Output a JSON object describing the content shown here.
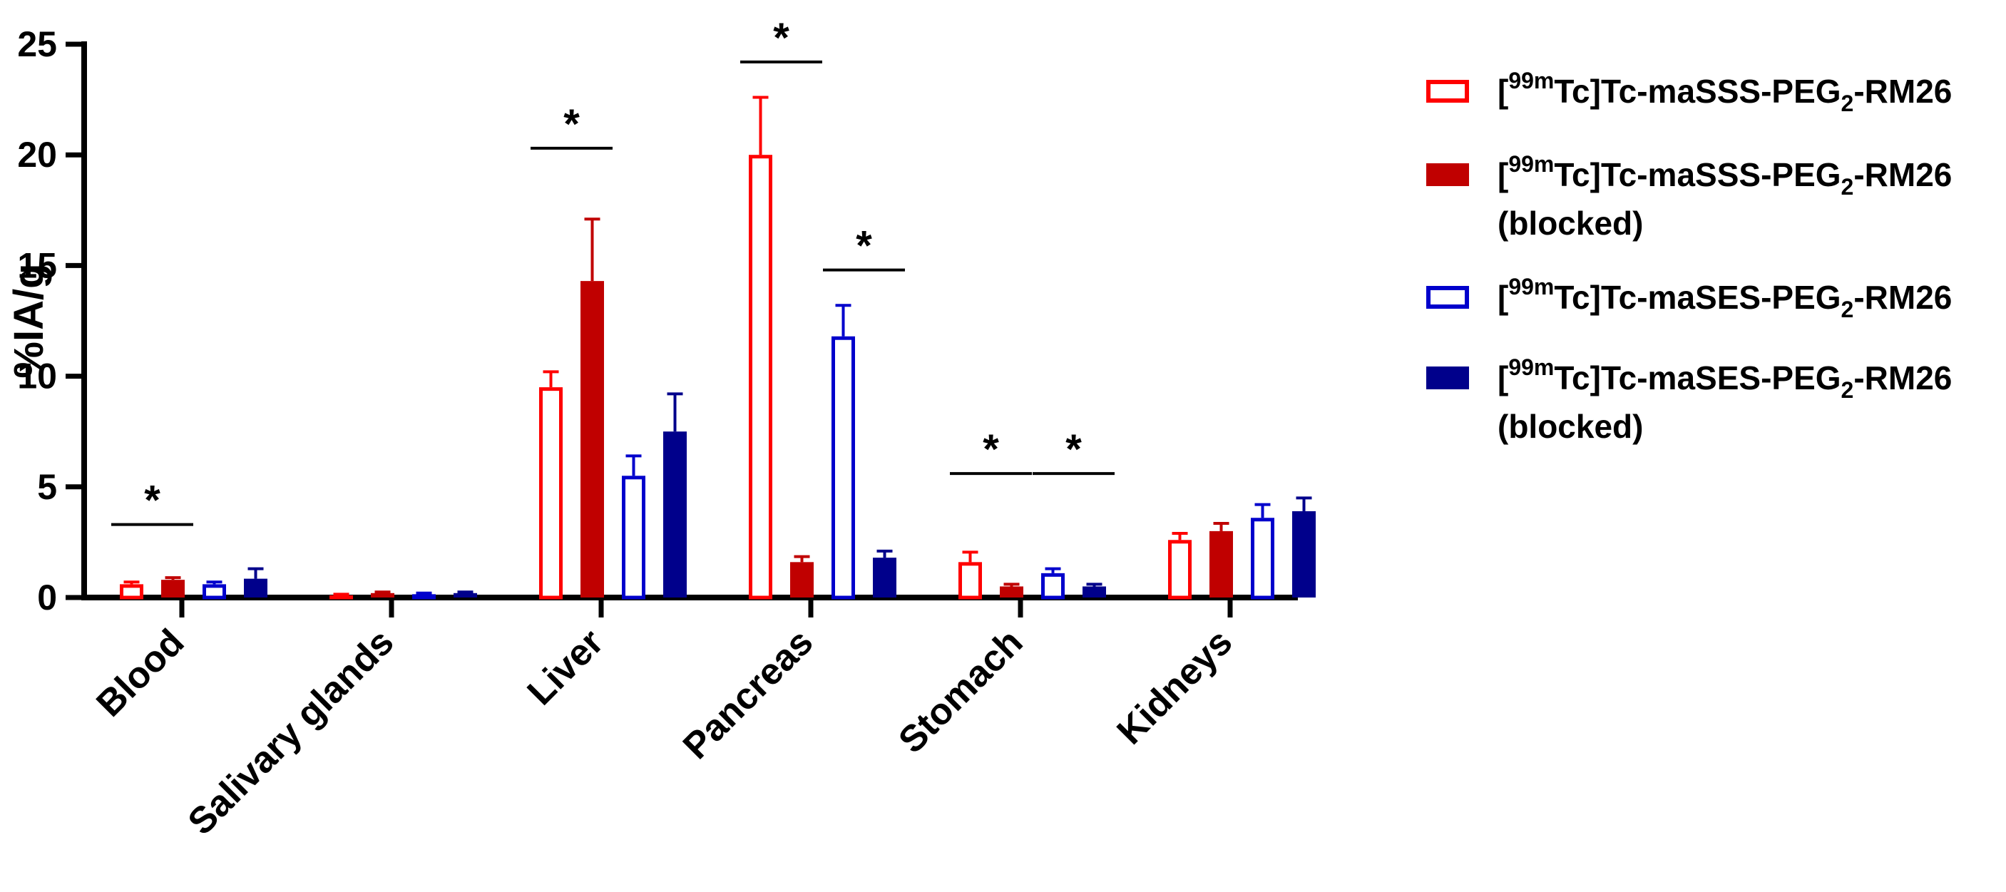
{
  "chart_data": {
    "type": "bar",
    "title": "",
    "xlabel": "",
    "ylabel": "%IA/g",
    "ylim": [
      0,
      25
    ],
    "yticks": [
      0,
      5,
      10,
      15,
      20,
      25
    ],
    "grid": false,
    "legend_position": "right",
    "categories": [
      "Blood",
      "Salivary glands",
      "Liver",
      "Pancreas",
      "Stomach",
      "Kidneys"
    ],
    "series": [
      {
        "name": "[99mTc]Tc-maSSS-PEG2-RM26",
        "legend": {
          "pre": "[",
          "sup": "99m",
          "mid": "Tc]Tc-maSSS-PEG",
          "sub": "2",
          "post": "-RM26",
          "line2": ""
        },
        "color": "#ff0000",
        "style": "open",
        "values": [
          0.6,
          0.1,
          9.5,
          20.0,
          1.6,
          2.6
        ],
        "errors": [
          0.1,
          0.05,
          0.7,
          2.6,
          0.45,
          0.3
        ]
      },
      {
        "name": "[99mTc]Tc-maSSS-PEG2-RM26 (blocked)",
        "legend": {
          "pre": "[",
          "sup": "99m",
          "mid": "Tc]Tc-maSSS-PEG",
          "sub": "2",
          "post": "-RM26",
          "line2": "(blocked)"
        },
        "color": "#c00000",
        "style": "filled",
        "values": [
          0.8,
          0.2,
          14.3,
          1.6,
          0.5,
          3.0
        ],
        "errors": [
          0.1,
          0.05,
          2.8,
          0.25,
          0.1,
          0.35
        ]
      },
      {
        "name": "[99mTc]Tc-maSES-PEG2-RM26",
        "legend": {
          "pre": "[",
          "sup": "99m",
          "mid": "Tc]Tc-maSES-PEG",
          "sub": "2",
          "post": "-RM26",
          "line2": ""
        },
        "color": "#0000cc",
        "style": "open",
        "values": [
          0.6,
          0.15,
          5.5,
          11.8,
          1.1,
          3.6
        ],
        "errors": [
          0.1,
          0.05,
          0.9,
          1.4,
          0.2,
          0.6
        ]
      },
      {
        "name": "[99mTc]Tc-maSES-PEG2-RM26 (blocked)",
        "legend": {
          "pre": "[",
          "sup": "99m",
          "mid": "Tc]Tc-maSES-PEG",
          "sub": "2",
          "post": "-RM26",
          "line2": "(blocked)"
        },
        "color": "#00008b",
        "style": "filled",
        "values": [
          0.85,
          0.2,
          7.5,
          1.8,
          0.5,
          3.9
        ],
        "errors": [
          0.45,
          0.05,
          1.7,
          0.3,
          0.1,
          0.6
        ]
      }
    ],
    "significance": [
      {
        "category": "Blood",
        "from": 0,
        "to": 1,
        "value": 3.3,
        "label": "*"
      },
      {
        "category": "Liver",
        "from": 0,
        "to": 1,
        "value": 20.3,
        "label": "*"
      },
      {
        "category": "Pancreas",
        "from": 0,
        "to": 1,
        "value": 24.2,
        "label": "*"
      },
      {
        "category": "Pancreas",
        "from": 2,
        "to": 3,
        "value": 14.8,
        "label": "*"
      },
      {
        "category": "Stomach",
        "from": 0,
        "to": 1,
        "value": 5.6,
        "label": "*"
      },
      {
        "category": "Stomach",
        "from": 2,
        "to": 3,
        "value": 5.6,
        "label": "*"
      }
    ]
  }
}
